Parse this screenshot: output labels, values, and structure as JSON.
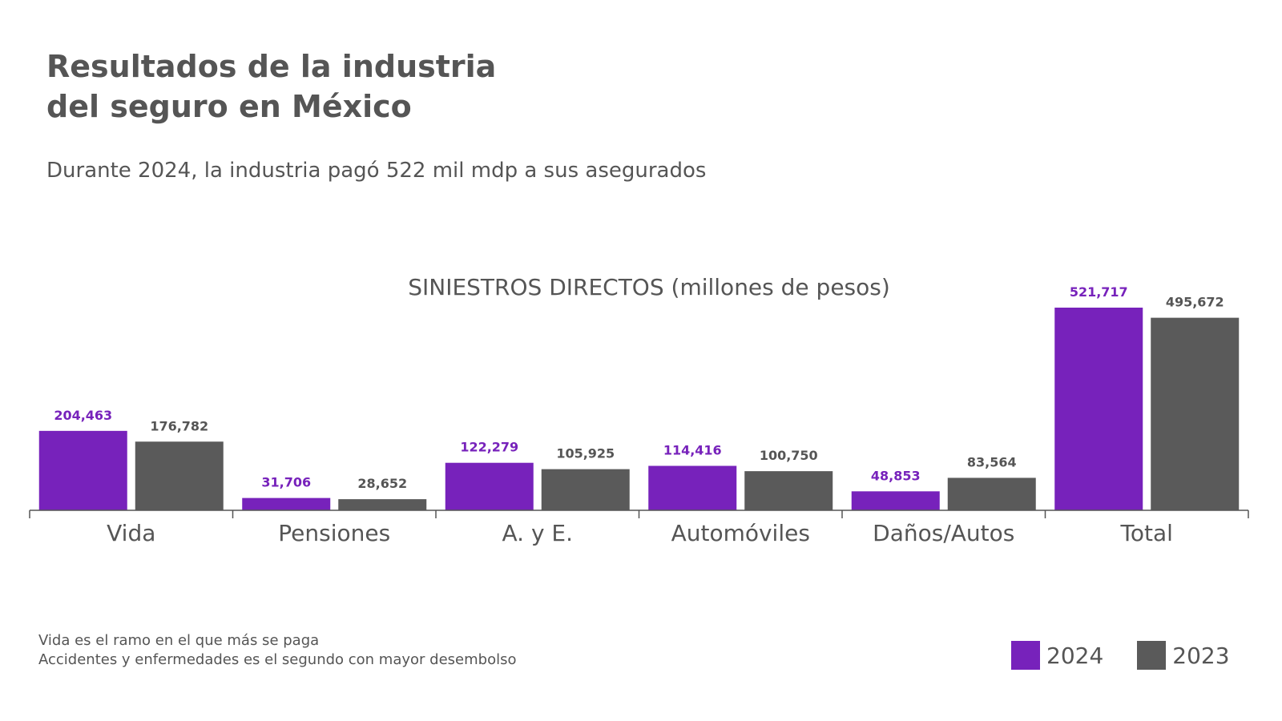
{
  "header": {
    "title_line1": "Resultados de la industria",
    "title_line2": "del seguro en México",
    "subtitle": "Durante 2024, la industria pagó 522 mil mdp a sus asegurados"
  },
  "colors": {
    "series_2024": "#7722bb",
    "series_2023": "#5a5a5a",
    "axis": "#555555",
    "text": "#555555"
  },
  "chart_data": {
    "type": "bar",
    "title": "SINIESTROS DIRECTOS (millones de pesos)",
    "categories": [
      "Vida",
      "Pensiones",
      "A. y E.",
      "Automóviles",
      "Daños/Autos",
      "Total"
    ],
    "series": [
      {
        "name": "2024",
        "values": [
          204463,
          31706,
          122279,
          114416,
          48853,
          521717
        ],
        "labels": [
          "204,463",
          "31,706",
          "122,279",
          "114,416",
          "48,853",
          "521,717"
        ]
      },
      {
        "name": "2023",
        "values": [
          176782,
          28652,
          105925,
          100750,
          83564,
          495672
        ],
        "labels": [
          "176,782",
          "28,652",
          "105,925",
          "100,750",
          "83,564",
          "495,672"
        ]
      }
    ],
    "ylim": [
      0,
      521717
    ],
    "grid": false,
    "legend_position": "bottom-right"
  },
  "footer": {
    "note_line1": "Vida es el ramo en el que más se paga",
    "note_line2": "Accidentes y enfermedades es el segundo con mayor desembolso"
  }
}
